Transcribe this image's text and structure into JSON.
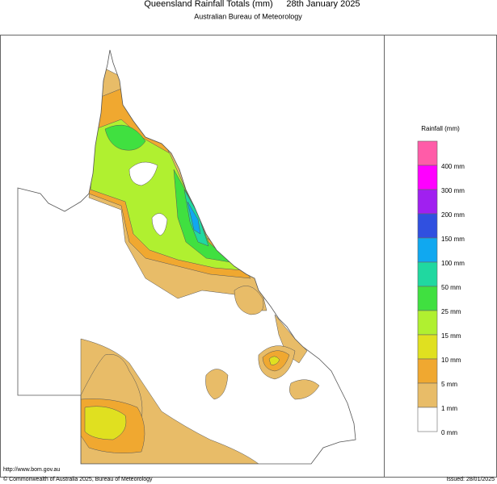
{
  "header": {
    "title": "Queensland Rainfall Totals (mm)",
    "date": "28th January 2025",
    "subtitle": "Australian Bureau of Meteorology"
  },
  "legend": {
    "title": "Rainfall (mm)",
    "items": [
      {
        "label": "400 mm",
        "color": "#ff5ca8"
      },
      {
        "label": "300 mm",
        "color": "#ff00ff"
      },
      {
        "label": "200 mm",
        "color": "#a020f0"
      },
      {
        "label": "150 mm",
        "color": "#3050e0"
      },
      {
        "label": "100 mm",
        "color": "#10a8f0"
      },
      {
        "label": "50 mm",
        "color": "#20d8a0"
      },
      {
        "label": "25 mm",
        "color": "#40e040"
      },
      {
        "label": "15 mm",
        "color": "#b0f030"
      },
      {
        "label": "10 mm",
        "color": "#e0e020"
      },
      {
        "label": "5 mm",
        "color": "#f0a830"
      },
      {
        "label": "1 mm",
        "color": "#e8bc68"
      },
      {
        "label": "0 mm",
        "color": "#ffffff"
      }
    ]
  },
  "footer": {
    "url": "http://www.bom.gov.au",
    "copyright": "© Commonwealth of Australia 2025, Bureau of Meteorology",
    "issued": "Issued: 28/01/2025"
  }
}
